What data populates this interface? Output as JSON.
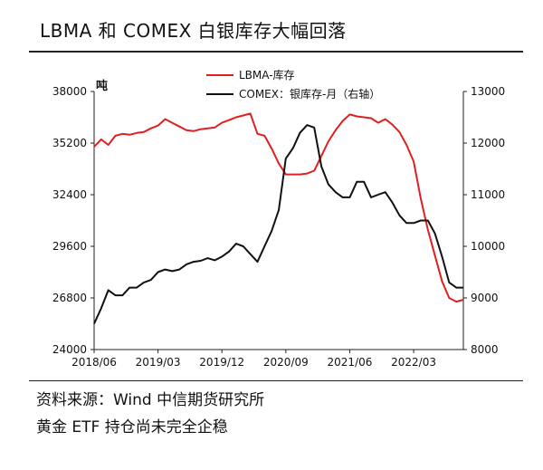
{
  "title": "LBMA 和 COMEX 白银库存大幅回落",
  "footer": {
    "source": "资料来源：Wind  中信期货研究所",
    "note": "黄金 ETF 持仓尚未完全企稳"
  },
  "chart_data": {
    "type": "line",
    "left_axis": {
      "unit_label": "吨",
      "ylim": [
        24000,
        38000
      ],
      "ticks": [
        "38000",
        "35200",
        "32400",
        "29600",
        "26800",
        "24000"
      ]
    },
    "right_axis": {
      "ylim": [
        8000,
        13000
      ],
      "ticks": [
        "13000",
        "12000",
        "11000",
        "10000",
        "9000",
        "8000"
      ]
    },
    "x_ticks": [
      "2018/06",
      "2019/03",
      "2019/12",
      "2020/09",
      "2021/06",
      "2022/03"
    ],
    "x_range": [
      0,
      52
    ],
    "x_tick_positions": [
      0,
      9,
      18,
      27,
      36,
      45
    ],
    "legend_position": "top-right",
    "series": [
      {
        "name": "LBMA-库存",
        "axis": "left",
        "color": "#e02020",
        "values": [
          35000,
          35400,
          35100,
          35600,
          35700,
          35650,
          35750,
          35800,
          36000,
          36150,
          36500,
          36300,
          36100,
          35900,
          35850,
          35950,
          36000,
          36050,
          36300,
          36450,
          36600,
          36700,
          36800,
          35700,
          35600,
          34900,
          34100,
          33500,
          33500,
          33500,
          33550,
          33700,
          34500,
          35300,
          35900,
          36400,
          36750,
          36650,
          36600,
          36550,
          36300,
          36500,
          36200,
          35800,
          35100,
          34200,
          32200,
          30500,
          29100,
          27700,
          26800,
          26600,
          26700
        ]
      },
      {
        "name": "COMEX：银库存-月（右轴）",
        "axis": "right",
        "color": "#111111",
        "values": [
          8500,
          8800,
          9150,
          9050,
          9050,
          9200,
          9200,
          9300,
          9350,
          9500,
          9550,
          9520,
          9550,
          9650,
          9700,
          9720,
          9770,
          9730,
          9800,
          9900,
          10050,
          10000,
          9850,
          9700,
          10000,
          10300,
          10700,
          11700,
          11900,
          12200,
          12350,
          12300,
          11550,
          11200,
          11050,
          10950,
          10950,
          11250,
          11250,
          10950,
          11000,
          11050,
          10850,
          10600,
          10450,
          10450,
          10500,
          10500,
          10250,
          9800,
          9300,
          9200,
          9200
        ]
      }
    ]
  }
}
